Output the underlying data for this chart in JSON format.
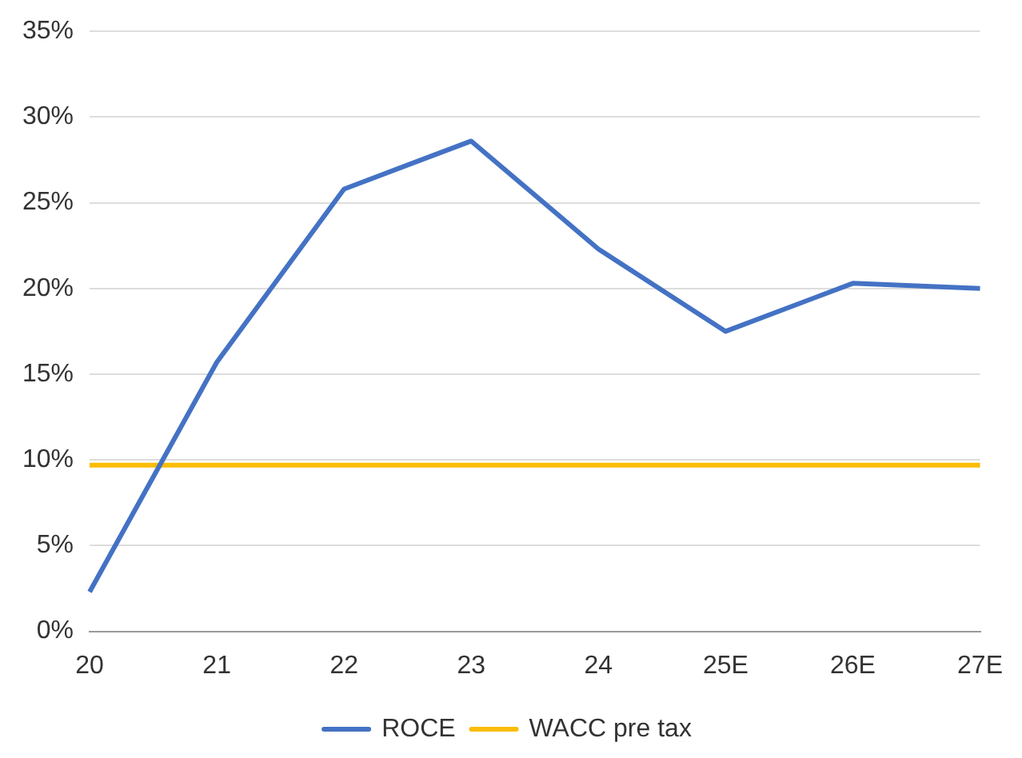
{
  "chart_data": {
    "type": "line",
    "categories": [
      "20",
      "21",
      "22",
      "23",
      "24",
      "25E",
      "26E",
      "27E"
    ],
    "series": [
      {
        "name": "ROCE",
        "color": "#4472c4",
        "values": [
          2.3,
          15.7,
          25.8,
          28.6,
          22.3,
          17.5,
          20.3,
          20.0
        ]
      },
      {
        "name": "WACC pre tax",
        "color": "#fbbc04",
        "values": [
          9.7,
          9.7,
          9.7,
          9.7,
          9.7,
          9.7,
          9.7,
          9.7
        ]
      }
    ],
    "ylim": [
      0,
      35
    ],
    "yticks": [
      {
        "value": 0,
        "label": "0%"
      },
      {
        "value": 5,
        "label": "5%"
      },
      {
        "value": 10,
        "label": "10%"
      },
      {
        "value": 15,
        "label": "15%"
      },
      {
        "value": 20,
        "label": "20%"
      },
      {
        "value": 25,
        "label": "25%"
      },
      {
        "value": 30,
        "label": "30%"
      },
      {
        "value": 35,
        "label": "35%"
      }
    ],
    "grid": "y",
    "legend": "bottom",
    "marker": "none",
    "line_style": "solid"
  }
}
